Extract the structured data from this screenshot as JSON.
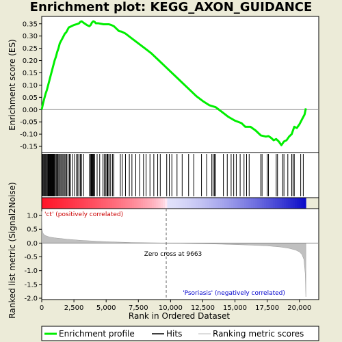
{
  "chart_data": {
    "type": "line",
    "title": "Enrichment plot: KEGG_AXON_GUIDANCE",
    "es_panel": {
      "ylabel": "Enrichment score (ES)",
      "ylim": [
        -0.175,
        0.38
      ],
      "yticks": [
        -0.15,
        -0.1,
        -0.05,
        0.0,
        0.05,
        0.1,
        0.15,
        0.2,
        0.25,
        0.3,
        0.35
      ],
      "ytick_labels": [
        "-0.15",
        "-0.10",
        "-0.05",
        "0.00",
        "0.05",
        "0.10",
        "0.15",
        "0.20",
        "0.25",
        "0.30",
        "0.35"
      ],
      "series": [
        {
          "name": "Enrichment profile",
          "color": "#00ee00",
          "x": [
            0,
            100,
            200,
            300,
            400,
            500,
            600,
            700,
            800,
            900,
            1000,
            1100,
            1200,
            1300,
            1400,
            1500,
            1600,
            1700,
            1800,
            1900,
            2000,
            2100,
            2300,
            2500,
            2700,
            2900,
            3000,
            3100,
            3300,
            3500,
            3700,
            3800,
            3900,
            4000,
            4100,
            4200,
            4400,
            4600,
            4800,
            5000,
            5200,
            5400,
            5600,
            5800,
            6000,
            6200,
            6500,
            7000,
            7500,
            8000,
            8500,
            9000,
            9500,
            10000,
            10500,
            11000,
            11500,
            12000,
            12500,
            13000,
            13500,
            14000,
            14500,
            15000,
            15500,
            15800,
            16200,
            16600,
            17000,
            17400,
            17600,
            17800,
            18000,
            18200,
            18400,
            18600,
            18800,
            19000,
            19200,
            19400,
            19600,
            19800,
            20000,
            20200,
            20400,
            20500
          ],
          "y": [
            0.0,
            0.025,
            0.045,
            0.065,
            0.08,
            0.1,
            0.12,
            0.14,
            0.16,
            0.18,
            0.2,
            0.215,
            0.235,
            0.25,
            0.27,
            0.28,
            0.29,
            0.3,
            0.31,
            0.315,
            0.325,
            0.335,
            0.34,
            0.345,
            0.348,
            0.352,
            0.358,
            0.36,
            0.352,
            0.345,
            0.34,
            0.345,
            0.355,
            0.36,
            0.358,
            0.352,
            0.352,
            0.35,
            0.348,
            0.348,
            0.348,
            0.345,
            0.34,
            0.33,
            0.32,
            0.318,
            0.31,
            0.29,
            0.27,
            0.25,
            0.23,
            0.205,
            0.18,
            0.155,
            0.13,
            0.105,
            0.08,
            0.055,
            0.035,
            0.018,
            0.01,
            -0.01,
            -0.03,
            -0.045,
            -0.055,
            -0.07,
            -0.07,
            -0.085,
            -0.105,
            -0.11,
            -0.108,
            -0.115,
            -0.125,
            -0.12,
            -0.13,
            -0.145,
            -0.13,
            -0.125,
            -0.11,
            -0.1,
            -0.07,
            -0.075,
            -0.06,
            -0.04,
            -0.02,
            0.005
          ]
        }
      ]
    },
    "hits": [
      60,
      110,
      170,
      240,
      300,
      360,
      420,
      480,
      530,
      580,
      620,
      660,
      700,
      740,
      780,
      820,
      860,
      900,
      940,
      980,
      1050,
      1120,
      1180,
      1250,
      1320,
      1400,
      1480,
      1560,
      1640,
      1720,
      1800,
      1880,
      1950,
      2050,
      2150,
      2250,
      2400,
      2550,
      2700,
      2800,
      2900,
      3000,
      3100,
      3250,
      3700,
      3800,
      3850,
      3900,
      3950,
      4000,
      4050,
      4100,
      4300,
      4500,
      4750,
      4850,
      4950,
      5050,
      5100,
      5150,
      5250,
      5350,
      5500,
      5600,
      6100,
      6250,
      6500,
      6800,
      7000,
      7300,
      7600,
      7900,
      8100,
      8400,
      8700,
      9000,
      9200,
      9700,
      9900,
      10100,
      10500,
      10900,
      11400,
      11800,
      12400,
      12800,
      13200,
      13300,
      13400,
      13500,
      14100,
      14400,
      14700,
      14900,
      15100,
      15400,
      15700,
      15900,
      16100,
      17000,
      17100,
      17500,
      17600,
      18200,
      18300,
      18700,
      18800,
      19100,
      19400,
      19500,
      19600,
      20100,
      20300
    ],
    "metric_panel": {
      "ylabel": "Ranked list metric (Signal2Noise)",
      "xlabel": "Rank in Ordered Dataset",
      "xlim": [
        0,
        21500
      ],
      "ylim": [
        -2.05,
        1.25
      ],
      "xticks": [
        0,
        2500,
        5000,
        7500,
        10000,
        12500,
        15000,
        17500,
        20000
      ],
      "xtick_labels": [
        "0",
        "2,500",
        "5,000",
        "7,500",
        "10,000",
        "12,500",
        "15,000",
        "17,500",
        "20,000"
      ],
      "yticks": [
        -2.0,
        -1.5,
        -1.0,
        -0.5,
        0.0,
        0.5,
        1.0
      ],
      "ytick_labels": [
        "-2.0",
        "-1.5",
        "-1.0",
        "-0.5",
        "0.0",
        "0.5",
        "1.0"
      ],
      "metric_x": [
        0,
        30,
        80,
        150,
        300,
        600,
        1000,
        2000,
        3000,
        5000,
        7000,
        9663,
        12000,
        14000,
        16000,
        17500,
        18500,
        19200,
        19700,
        20000,
        20200,
        20350,
        20450,
        20500
      ],
      "metric_y": [
        1.15,
        0.5,
        0.38,
        0.32,
        0.27,
        0.22,
        0.19,
        0.14,
        0.1,
        0.05,
        0.02,
        0.0,
        -0.02,
        -0.04,
        -0.07,
        -0.1,
        -0.14,
        -0.19,
        -0.25,
        -0.32,
        -0.42,
        -0.6,
        -1.1,
        -1.95
      ],
      "zero_cross": 9663,
      "zero_cross_label": "Zero cross at 9663",
      "pos_label": "'ct' (positively correlated)",
      "neg_label": "'Psoriasis' (negatively correlated)",
      "pos_color": "#cc0000",
      "neg_color": "#0000cc"
    },
    "legend": [
      {
        "label": "Enrichment profile",
        "color": "#00ee00"
      },
      {
        "label": "Hits",
        "color": "#000000"
      },
      {
        "label": "Ranking metric scores",
        "color": "#bbbbbb"
      }
    ],
    "n_genes": 20500
  }
}
